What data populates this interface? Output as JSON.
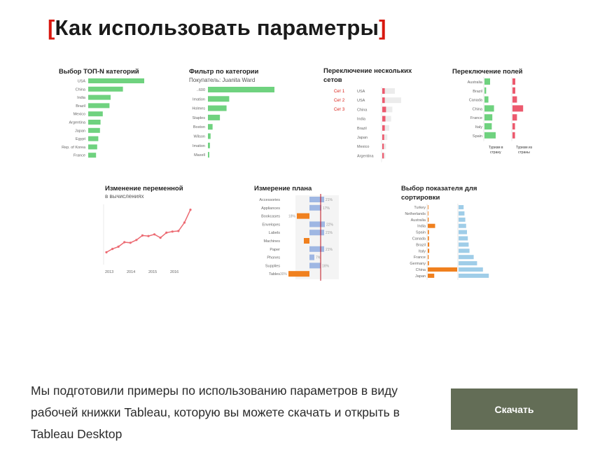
{
  "page": {
    "title_open": "[",
    "title": "Как использовать параметры",
    "title_close": "]",
    "description": "Мы подготовили примеры по использованию параметров в виду рабочей книжки Tableau, которую вы можете скачать и открыть в Tableau Desktop",
    "download_label": "Скачать",
    "colors": {
      "accent": "#d8180f",
      "button": "#636d56",
      "green": "#6fd27f",
      "red": "#ec5a6e",
      "blue": "#9fb7e3",
      "orange": "#f0801e",
      "lightblue": "#9fcde8"
    }
  },
  "chart_data": [
    {
      "type": "bar",
      "title": "Выбор ТОП-N категорий",
      "categories": [
        "USA",
        "China",
        "India",
        "Brazil",
        "Mexico",
        "Argentina",
        "Japan",
        "Egypt",
        "Rep. of Korea",
        "France"
      ],
      "values": [
        100,
        62,
        40,
        38,
        26,
        22,
        21,
        18,
        16,
        14
      ]
    },
    {
      "type": "bar",
      "title": "Фильтр по категории",
      "subtitle": "Покупатель: Juanita Ward",
      "categories": [
        "..600",
        "Imation",
        "Holmes",
        "Staples",
        "Boston",
        "Wilson",
        "Imation",
        "Maxell"
      ],
      "values": [
        100,
        32,
        28,
        18,
        7,
        4,
        3,
        2
      ]
    },
    {
      "type": "bar",
      "title": "Переключение нескольких сетов",
      "sets": [
        "Сет 1",
        "Сет 2",
        "Сет 3"
      ],
      "categories": [
        "USA",
        "USA",
        "China",
        "India",
        "Brazil",
        "Japan",
        "Mexico",
        "Argentina"
      ],
      "values": [
        8,
        8,
        12,
        10,
        8,
        6,
        5,
        5
      ],
      "background_values": [
        40,
        60,
        32,
        28,
        22,
        16,
        12,
        10
      ]
    },
    {
      "type": "bar",
      "title": "Переключение полей",
      "categories": [
        "Australia",
        "Brazil",
        "Canada",
        "China",
        "France",
        "Italy",
        "Spain"
      ],
      "series": [
        {
          "name": "Туризм в страну",
          "values": [
            20,
            6,
            14,
            34,
            28,
            26,
            40
          ]
        },
        {
          "name": "Туризм из страны",
          "values": [
            10,
            10,
            16,
            38,
            16,
            9,
            9
          ]
        }
      ]
    },
    {
      "type": "line",
      "title": "Изменение переменной",
      "subtitle": "в вычислениях",
      "x_ticks": [
        "2013",
        "2014",
        "2015",
        "2016"
      ],
      "values": [
        12,
        18,
        22,
        30,
        29,
        34,
        42,
        41,
        44,
        38,
        47,
        49,
        50,
        65,
        88
      ]
    },
    {
      "type": "bar",
      "title": "Измерение плана",
      "categories": [
        "Accessories",
        "Appliances",
        "Bookcases",
        "Envelopes",
        "Labels",
        "Machines",
        "Paper",
        "Phones",
        "Supplies",
        "Tables"
      ],
      "values": [
        21,
        17,
        -18,
        22,
        21,
        -8,
        21,
        7,
        16,
        -30
      ],
      "labels": [
        "21%",
        "17%",
        "18%",
        "22%",
        "21%",
        "",
        "21%",
        "7%",
        "16%",
        "30%"
      ]
    },
    {
      "type": "bar",
      "title": "Выбор показателя для сортировки",
      "categories": [
        "Turkey",
        "Netherlands",
        "Australia",
        "India",
        "Spain",
        "Canada",
        "Brazil",
        "Italy",
        "France",
        "Germany",
        "China",
        "Japan"
      ],
      "series": [
        {
          "values": [
            2,
            2,
            3,
            25,
            4,
            4,
            5,
            5,
            3,
            4,
            100,
            22
          ]
        },
        {
          "values": [
            12,
            14,
            16,
            18,
            20,
            22,
            24,
            26,
            36,
            44,
            58,
            72
          ]
        }
      ]
    }
  ]
}
